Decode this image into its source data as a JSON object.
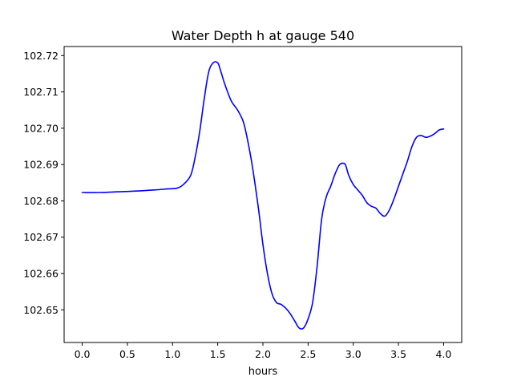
{
  "chart_data": {
    "type": "line",
    "title": "Water Depth h at gauge 540",
    "xlabel": "hours",
    "ylabel": "",
    "xlim": [
      -0.2,
      4.2
    ],
    "ylim": [
      102.641,
      102.7225
    ],
    "xticks": [
      0.0,
      0.5,
      1.0,
      1.5,
      2.0,
      2.5,
      3.0,
      3.5,
      4.0
    ],
    "xtick_labels": [
      "0.0",
      "0.5",
      "1.0",
      "1.5",
      "2.0",
      "2.5",
      "3.0",
      "3.5",
      "4.0"
    ],
    "yticks": [
      102.65,
      102.66,
      102.67,
      102.68,
      102.69,
      102.7,
      102.71,
      102.72
    ],
    "ytick_labels": [
      "102.65",
      "102.66",
      "102.67",
      "102.68",
      "102.69",
      "102.70",
      "102.71",
      "102.72"
    ],
    "grid": false,
    "legend": "none",
    "series": [
      {
        "color": "#0000ff",
        "x": [
          0.0,
          0.2,
          0.4,
          0.6,
          0.8,
          0.95,
          1.05,
          1.12,
          1.2,
          1.25,
          1.3,
          1.35,
          1.4,
          1.45,
          1.5,
          1.53,
          1.58,
          1.65,
          1.72,
          1.78,
          1.82,
          1.88,
          1.95,
          2.0,
          2.05,
          2.1,
          2.15,
          2.2,
          2.25,
          2.3,
          2.35,
          2.4,
          2.45,
          2.5,
          2.55,
          2.6,
          2.65,
          2.7,
          2.75,
          2.8,
          2.85,
          2.9,
          2.92,
          2.95,
          3.0,
          3.05,
          3.1,
          3.15,
          3.2,
          3.25,
          3.3,
          3.35,
          3.4,
          3.45,
          3.5,
          3.55,
          3.6,
          3.65,
          3.7,
          3.75,
          3.8,
          3.85,
          3.9,
          3.95,
          4.0
        ],
        "y": [
          102.6823,
          102.6823,
          102.6825,
          102.6827,
          102.683,
          102.6833,
          102.6835,
          102.6845,
          102.687,
          102.692,
          102.699,
          102.708,
          102.7155,
          102.718,
          102.718,
          102.716,
          102.712,
          102.7075,
          102.705,
          102.702,
          102.698,
          102.69,
          102.678,
          102.668,
          102.66,
          102.6545,
          102.652,
          102.6515,
          102.6505,
          102.649,
          102.647,
          102.645,
          102.645,
          102.6475,
          102.652,
          102.662,
          102.675,
          102.681,
          102.684,
          102.6875,
          102.69,
          102.6903,
          102.6895,
          102.687,
          102.6845,
          102.683,
          102.6815,
          102.6795,
          102.6785,
          102.678,
          102.6765,
          102.6758,
          102.6775,
          102.6805,
          102.684,
          102.6875,
          102.691,
          102.695,
          102.6975,
          102.698,
          102.6975,
          102.6978,
          102.6985,
          102.6995,
          102.6998
        ]
      }
    ]
  }
}
